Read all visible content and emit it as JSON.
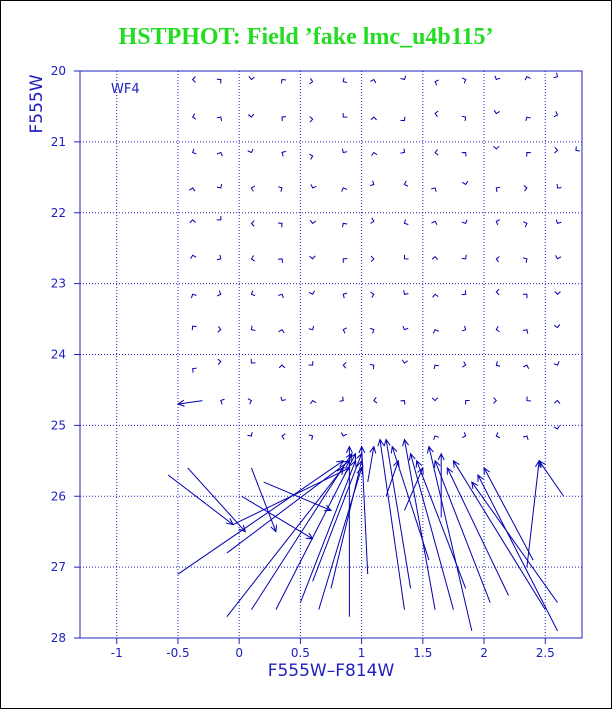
{
  "title": "HSTPHOT: Field ’fake lmc_u4b115’",
  "chart_data": {
    "type": "scatter",
    "title": "HSTPHOT: Field ’fake lmc_u4b115’",
    "panel_label": "WF4",
    "xlabel": "F555W–F814W",
    "ylabel": "F555W",
    "xlim": [
      -1.3,
      2.8
    ],
    "ylim": [
      28,
      20
    ],
    "xticks": [
      -1,
      -0.5,
      0,
      0.5,
      1,
      1.5,
      2,
      2.5
    ],
    "yticks": [
      20,
      21,
      22,
      23,
      24,
      25,
      26,
      27,
      28
    ],
    "grid": true,
    "colors": {
      "title": "#22dd22",
      "axes": "#2020c0",
      "vectors": "#0000b0"
    },
    "vectors": [
      {
        "x": 0.05,
        "y": 26.5,
        "x2": -0.42,
        "y2": 25.6
      },
      {
        "x": -0.05,
        "y": 26.4,
        "x2": -0.58,
        "y2": 25.7
      },
      {
        "x": 0.3,
        "y": 26.5,
        "x2": 0.1,
        "y2": 25.6
      },
      {
        "x": 0.6,
        "y": 26.6,
        "x2": 0.02,
        "y2": 26.0
      },
      {
        "x": 0.75,
        "y": 26.2,
        "x2": 0.2,
        "y2": 25.8
      },
      {
        "x": 0.9,
        "y": 25.6,
        "x2": -0.05,
        "y2": 26.4
      },
      {
        "x": 0.9,
        "y": 25.5,
        "x2": -0.1,
        "y2": 26.8
      },
      {
        "x": 0.85,
        "y": 25.5,
        "x2": -0.5,
        "y2": 27.1
      },
      {
        "x": 0.85,
        "y": 25.6,
        "x2": -0.1,
        "y2": 27.7
      },
      {
        "x": 0.92,
        "y": 25.4,
        "x2": 0.1,
        "y2": 27.6
      },
      {
        "x": 0.95,
        "y": 25.4,
        "x2": 0.3,
        "y2": 27.6
      },
      {
        "x": 0.95,
        "y": 25.5,
        "x2": 0.5,
        "y2": 27.5
      },
      {
        "x": 1.0,
        "y": 25.4,
        "x2": 0.6,
        "y2": 27.2
      },
      {
        "x": 1.0,
        "y": 25.5,
        "x2": 0.75,
        "y2": 27.3
      },
      {
        "x": 1.0,
        "y": 25.6,
        "x2": 0.65,
        "y2": 27.6
      },
      {
        "x": 0.9,
        "y": 25.3,
        "x2": 0.9,
        "y2": 27.7
      },
      {
        "x": 1.0,
        "y": 25.3,
        "x2": 1.05,
        "y2": 27.1
      },
      {
        "x": 1.15,
        "y": 25.2,
        "x2": 1.35,
        "y2": 27.6
      },
      {
        "x": 1.2,
        "y": 25.2,
        "x2": 1.4,
        "y2": 27.3
      },
      {
        "x": 1.25,
        "y": 25.3,
        "x2": 1.55,
        "y2": 26.9
      },
      {
        "x": 1.35,
        "y": 25.2,
        "x2": 1.6,
        "y2": 27.6
      },
      {
        "x": 1.4,
        "y": 25.4,
        "x2": 1.75,
        "y2": 27.6
      },
      {
        "x": 1.45,
        "y": 25.5,
        "x2": 1.85,
        "y2": 27.3
      },
      {
        "x": 1.55,
        "y": 25.3,
        "x2": 1.9,
        "y2": 27.9
      },
      {
        "x": 1.6,
        "y": 25.5,
        "x2": 2.05,
        "y2": 27.5
      },
      {
        "x": 1.7,
        "y": 25.6,
        "x2": 2.2,
        "y2": 27.4
      },
      {
        "x": 1.75,
        "y": 25.5,
        "x2": 2.5,
        "y2": 27.6
      },
      {
        "x": 1.9,
        "y": 25.8,
        "x2": 2.6,
        "y2": 27.5
      },
      {
        "x": 2.0,
        "y": 25.6,
        "x2": 2.4,
        "y2": 26.9
      },
      {
        "x": 1.95,
        "y": 25.7,
        "x2": 2.6,
        "y2": 27.9
      },
      {
        "x": 2.45,
        "y": 25.5,
        "x2": 2.35,
        "y2": 27.0
      },
      {
        "x": 2.45,
        "y": 25.5,
        "x2": 2.65,
        "y2": 26.0
      },
      {
        "x": 1.65,
        "y": 25.4,
        "x2": 1.65,
        "y2": 26.3
      },
      {
        "x": 1.5,
        "y": 25.6,
        "x2": 1.35,
        "y2": 26.2
      },
      {
        "x": 1.3,
        "y": 25.5,
        "x2": 1.2,
        "y2": 26.0
      },
      {
        "x": 1.1,
        "y": 25.3,
        "x2": 1.05,
        "y2": 25.8
      },
      {
        "x": -0.5,
        "y": 24.7,
        "x2": -0.3,
        "y2": 24.65
      }
    ],
    "chevrons": [
      {
        "x": -0.38,
        "y": 20.12
      },
      {
        "x": -0.15,
        "y": 20.12
      },
      {
        "x": 0.1,
        "y": 20.12
      },
      {
        "x": 0.35,
        "y": 20.12
      },
      {
        "x": 0.6,
        "y": 20.15
      },
      {
        "x": 0.85,
        "y": 20.15
      },
      {
        "x": 1.1,
        "y": 20.12
      },
      {
        "x": 1.35,
        "y": 20.12
      },
      {
        "x": 1.6,
        "y": 20.15
      },
      {
        "x": 1.85,
        "y": 20.12
      },
      {
        "x": 2.1,
        "y": 20.12
      },
      {
        "x": 2.35,
        "y": 20.08
      },
      {
        "x": 2.6,
        "y": 20.08
      },
      {
        "x": -0.38,
        "y": 20.65
      },
      {
        "x": -0.15,
        "y": 20.65
      },
      {
        "x": 0.1,
        "y": 20.65
      },
      {
        "x": 0.35,
        "y": 20.65
      },
      {
        "x": 0.6,
        "y": 20.68
      },
      {
        "x": 0.85,
        "y": 20.65
      },
      {
        "x": 1.1,
        "y": 20.65
      },
      {
        "x": 1.35,
        "y": 20.7
      },
      {
        "x": 1.6,
        "y": 20.6
      },
      {
        "x": 1.85,
        "y": 20.65
      },
      {
        "x": 2.1,
        "y": 20.6
      },
      {
        "x": 2.35,
        "y": 20.65
      },
      {
        "x": 2.6,
        "y": 20.62
      },
      {
        "x": -0.38,
        "y": 21.15
      },
      {
        "x": -0.15,
        "y": 21.15
      },
      {
        "x": 0.1,
        "y": 21.15
      },
      {
        "x": 0.35,
        "y": 21.15
      },
      {
        "x": 0.6,
        "y": 21.2
      },
      {
        "x": 0.85,
        "y": 21.15
      },
      {
        "x": 1.1,
        "y": 21.15
      },
      {
        "x": 1.35,
        "y": 21.15
      },
      {
        "x": 1.6,
        "y": 21.15
      },
      {
        "x": 1.85,
        "y": 21.15
      },
      {
        "x": 2.1,
        "y": 21.1
      },
      {
        "x": 2.35,
        "y": 21.15
      },
      {
        "x": 2.6,
        "y": 21.12
      },
      {
        "x": 2.75,
        "y": 21.12
      },
      {
        "x": -0.38,
        "y": 21.65
      },
      {
        "x": -0.15,
        "y": 21.65
      },
      {
        "x": 0.1,
        "y": 21.65
      },
      {
        "x": 0.35,
        "y": 21.65
      },
      {
        "x": 0.6,
        "y": 21.65
      },
      {
        "x": 0.85,
        "y": 21.65
      },
      {
        "x": 1.1,
        "y": 21.6
      },
      {
        "x": 1.35,
        "y": 21.6
      },
      {
        "x": 1.6,
        "y": 21.65
      },
      {
        "x": 1.85,
        "y": 21.6
      },
      {
        "x": 2.1,
        "y": 21.65
      },
      {
        "x": 2.35,
        "y": 21.65
      },
      {
        "x": 2.6,
        "y": 21.65
      },
      {
        "x": -0.38,
        "y": 22.1
      },
      {
        "x": -0.15,
        "y": 22.1
      },
      {
        "x": 0.1,
        "y": 22.15
      },
      {
        "x": 0.35,
        "y": 22.15
      },
      {
        "x": 0.6,
        "y": 22.15
      },
      {
        "x": 0.85,
        "y": 22.15
      },
      {
        "x": 1.1,
        "y": 22.12
      },
      {
        "x": 1.35,
        "y": 22.15
      },
      {
        "x": 1.6,
        "y": 22.12
      },
      {
        "x": 1.85,
        "y": 22.15
      },
      {
        "x": 2.1,
        "y": 22.12
      },
      {
        "x": 2.35,
        "y": 22.15
      },
      {
        "x": 2.6,
        "y": 22.15
      },
      {
        "x": -0.38,
        "y": 22.6
      },
      {
        "x": -0.15,
        "y": 22.65
      },
      {
        "x": 0.1,
        "y": 22.65
      },
      {
        "x": 0.35,
        "y": 22.65
      },
      {
        "x": 0.6,
        "y": 22.65
      },
      {
        "x": 0.85,
        "y": 22.65
      },
      {
        "x": 1.1,
        "y": 22.65
      },
      {
        "x": 1.35,
        "y": 22.65
      },
      {
        "x": 1.6,
        "y": 22.62
      },
      {
        "x": 1.85,
        "y": 22.65
      },
      {
        "x": 2.1,
        "y": 22.65
      },
      {
        "x": 2.35,
        "y": 22.65
      },
      {
        "x": 2.6,
        "y": 22.65
      },
      {
        "x": -0.38,
        "y": 23.15
      },
      {
        "x": -0.15,
        "y": 23.15
      },
      {
        "x": 0.1,
        "y": 23.15
      },
      {
        "x": 0.35,
        "y": 23.15
      },
      {
        "x": 0.6,
        "y": 23.15
      },
      {
        "x": 0.85,
        "y": 23.15
      },
      {
        "x": 1.1,
        "y": 23.15
      },
      {
        "x": 1.35,
        "y": 23.15
      },
      {
        "x": 1.6,
        "y": 23.15
      },
      {
        "x": 1.85,
        "y": 23.15
      },
      {
        "x": 2.1,
        "y": 23.12
      },
      {
        "x": 2.35,
        "y": 23.15
      },
      {
        "x": 2.6,
        "y": 23.15
      },
      {
        "x": -0.38,
        "y": 23.6
      },
      {
        "x": -0.15,
        "y": 23.65
      },
      {
        "x": 0.1,
        "y": 23.65
      },
      {
        "x": 0.35,
        "y": 23.65
      },
      {
        "x": 0.6,
        "y": 23.65
      },
      {
        "x": 0.85,
        "y": 23.65
      },
      {
        "x": 1.1,
        "y": 23.65
      },
      {
        "x": 1.35,
        "y": 23.65
      },
      {
        "x": 1.6,
        "y": 23.65
      },
      {
        "x": 1.85,
        "y": 23.65
      },
      {
        "x": 2.1,
        "y": 23.65
      },
      {
        "x": 2.35,
        "y": 23.65
      },
      {
        "x": 2.6,
        "y": 23.62
      },
      {
        "x": -0.38,
        "y": 24.2
      },
      {
        "x": -0.15,
        "y": 24.1
      },
      {
        "x": 0.1,
        "y": 24.12
      },
      {
        "x": 0.35,
        "y": 24.15
      },
      {
        "x": 0.6,
        "y": 24.15
      },
      {
        "x": 0.85,
        "y": 24.15
      },
      {
        "x": 1.1,
        "y": 24.15
      },
      {
        "x": 1.35,
        "y": 24.12
      },
      {
        "x": 1.6,
        "y": 24.15
      },
      {
        "x": 1.85,
        "y": 24.15
      },
      {
        "x": 2.1,
        "y": 24.15
      },
      {
        "x": 2.35,
        "y": 24.15
      },
      {
        "x": 2.6,
        "y": 24.15
      },
      {
        "x": -0.15,
        "y": 24.65
      },
      {
        "x": 0.1,
        "y": 24.65
      },
      {
        "x": 0.35,
        "y": 24.65
      },
      {
        "x": 0.6,
        "y": 24.65
      },
      {
        "x": 0.85,
        "y": 24.65
      },
      {
        "x": 1.1,
        "y": 24.65
      },
      {
        "x": 1.35,
        "y": 24.65
      },
      {
        "x": 1.6,
        "y": 24.65
      },
      {
        "x": 1.85,
        "y": 24.65
      },
      {
        "x": 2.1,
        "y": 24.65
      },
      {
        "x": 2.35,
        "y": 24.65
      },
      {
        "x": 2.6,
        "y": 24.65
      },
      {
        "x": 0.1,
        "y": 25.15
      },
      {
        "x": 0.35,
        "y": 25.15
      },
      {
        "x": 0.6,
        "y": 25.15
      },
      {
        "x": 0.85,
        "y": 25.15
      },
      {
        "x": 1.6,
        "y": 25.15
      },
      {
        "x": 1.85,
        "y": 25.15
      },
      {
        "x": 2.1,
        "y": 25.15
      },
      {
        "x": 2.35,
        "y": 25.15
      },
      {
        "x": 2.6,
        "y": 25.05
      }
    ]
  }
}
